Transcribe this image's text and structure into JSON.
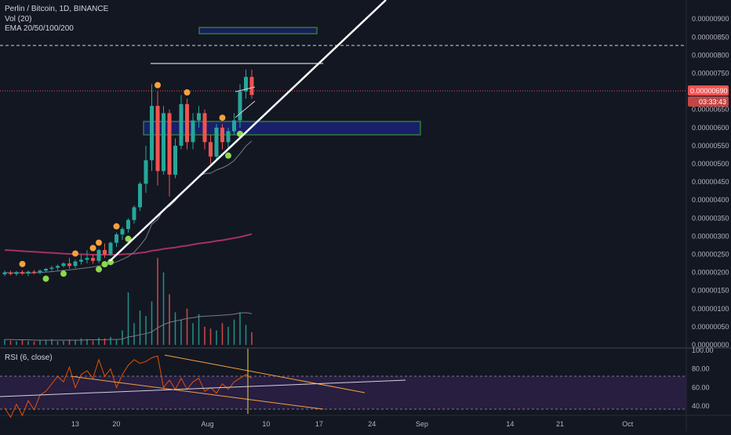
{
  "legend": {
    "symbol": "Perlin / Bitcoin, 1D, BINANCE",
    "volume": "Vol (20)",
    "ema": "EMA 20/50/100/200",
    "rsi": "RSI (6, close)"
  },
  "price_axis": {
    "labels": [
      "0.00000900",
      "0.00000850",
      "0.00000800",
      "0.00000750",
      "0.00000700",
      "0.00000650",
      "0.00000600",
      "0.00000550",
      "0.00000500",
      "0.00000450",
      "0.00000400",
      "0.00000350",
      "0.00000300",
      "0.00000250",
      "0.00000200",
      "0.00000150",
      "0.00000100",
      "0.00000050",
      "0.00000000"
    ],
    "last_price": "0.00000690",
    "countdown": "03:33:43"
  },
  "rsi_axis": {
    "labels": [
      "100.00",
      "80.00",
      "60.00",
      "40.00"
    ]
  },
  "time_axis": {
    "labels": [
      "13",
      "20",
      "Aug",
      "10",
      "17",
      "24",
      "Sep",
      "14",
      "21",
      "Oct"
    ]
  },
  "colors": {
    "background": "#131722",
    "up": "#26a69a",
    "down": "#ef5350",
    "ema_slow": "#a3325f",
    "ema_fast": "#787b86",
    "trendline": "#ffffff",
    "zone_fill": "#1a237e",
    "zone_border": "#2e7d32",
    "rsi_line": "#e65100",
    "rsi_band": "#2a1f44",
    "marker_orange": "#f5a13c",
    "marker_green": "#8bd94d",
    "last_price_bg": "#ef5350",
    "countdown_bg": "#d84f4f"
  },
  "chart_data": {
    "type": "candlestick",
    "instrument": "Perlin / Bitcoin",
    "interval": "1D",
    "exchange": "BINANCE",
    "y_range": [
      0.0,
      9.2e-06
    ],
    "ohlc": [
      {
        "o": 1.95e-06,
        "h": 2.05e-06,
        "l": 1.9e-06,
        "c": 2e-06
      },
      {
        "o": 2e-06,
        "h": 2.05e-06,
        "l": 1.92e-06,
        "c": 1.96e-06
      },
      {
        "o": 1.96e-06,
        "h": 2.04e-06,
        "l": 1.91e-06,
        "c": 2.01e-06
      },
      {
        "o": 2.01e-06,
        "h": 2.06e-06,
        "l": 1.93e-06,
        "c": 1.97e-06
      },
      {
        "o": 1.97e-06,
        "h": 2.05e-06,
        "l": 1.9e-06,
        "c": 2.02e-06
      },
      {
        "o": 2.02e-06,
        "h": 2.07e-06,
        "l": 1.95e-06,
        "c": 1.99e-06
      },
      {
        "o": 1.99e-06,
        "h": 2.08e-06,
        "l": 1.95e-06,
        "c": 2.05e-06
      },
      {
        "o": 2.05e-06,
        "h": 2.12e-06,
        "l": 2e-06,
        "c": 2.1e-06
      },
      {
        "o": 2.1e-06,
        "h": 2.18e-06,
        "l": 2.04e-06,
        "c": 2.13e-06
      },
      {
        "o": 2.13e-06,
        "h": 2.22e-06,
        "l": 2.06e-06,
        "c": 2.18e-06
      },
      {
        "o": 2.18e-06,
        "h": 2.28e-06,
        "l": 2.14e-06,
        "c": 2.25e-06
      },
      {
        "o": 2.25e-06,
        "h": 2.4e-06,
        "l": 2.1e-06,
        "c": 2.18e-06
      },
      {
        "o": 2.18e-06,
        "h": 2.35e-06,
        "l": 2.12e-06,
        "c": 2.3e-06
      },
      {
        "o": 2.3e-06,
        "h": 2.5e-06,
        "l": 2.22e-06,
        "c": 2.35e-06
      },
      {
        "o": 2.35e-06,
        "h": 2.62e-06,
        "l": 2.25e-06,
        "c": 2.4e-06
      },
      {
        "o": 2.4e-06,
        "h": 2.5e-06,
        "l": 2.24e-06,
        "c": 2.32e-06
      },
      {
        "o": 2.32e-06,
        "h": 2.65e-06,
        "l": 2.26e-06,
        "c": 2.62e-06
      },
      {
        "o": 2.62e-06,
        "h": 2.8e-06,
        "l": 2.4e-06,
        "c": 2.5e-06
      },
      {
        "o": 2.5e-06,
        "h": 2.85e-06,
        "l": 2.46e-06,
        "c": 2.82e-06
      },
      {
        "o": 2.82e-06,
        "h": 3.1e-06,
        "l": 2.7e-06,
        "c": 3.05e-06
      },
      {
        "o": 3.05e-06,
        "h": 3.25e-06,
        "l": 2.9e-06,
        "c": 3.2e-06
      },
      {
        "o": 3.2e-06,
        "h": 3.5e-06,
        "l": 3.1e-06,
        "c": 3.45e-06
      },
      {
        "o": 3.45e-06,
        "h": 3.85e-06,
        "l": 3.35e-06,
        "c": 3.8e-06
      },
      {
        "o": 3.8e-06,
        "h": 4.5e-06,
        "l": 3.7e-06,
        "c": 4.45e-06
      },
      {
        "o": 4.45e-06,
        "h": 5.5e-06,
        "l": 4.2e-06,
        "c": 5.1e-06
      },
      {
        "o": 5.1e-06,
        "h": 7.2e-06,
        "l": 4.8e-06,
        "c": 6.6e-06
      },
      {
        "o": 6.6e-06,
        "h": 7e-06,
        "l": 4.4e-06,
        "c": 4.8e-06
      },
      {
        "o": 4.8e-06,
        "h": 6.6e-06,
        "l": 4.7e-06,
        "c": 6.4e-06
      },
      {
        "o": 6.4e-06,
        "h": 6.5e-06,
        "l": 4.1e-06,
        "c": 4.7e-06
      },
      {
        "o": 4.7e-06,
        "h": 5.7e-06,
        "l": 4.6e-06,
        "c": 5.5e-06
      },
      {
        "o": 5.5e-06,
        "h": 6.9e-06,
        "l": 5.4e-06,
        "c": 6.65e-06
      },
      {
        "o": 6.65e-06,
        "h": 6.8e-06,
        "l": 5.4e-06,
        "c": 5.6e-06
      },
      {
        "o": 5.6e-06,
        "h": 6.4e-06,
        "l": 5.4e-06,
        "c": 6.2e-06
      },
      {
        "o": 6.2e-06,
        "h": 6.6e-06,
        "l": 6e-06,
        "c": 6.4e-06
      },
      {
        "o": 6.4e-06,
        "h": 6.5e-06,
        "l": 5.4e-06,
        "c": 5.6e-06
      },
      {
        "o": 5.6e-06,
        "h": 5.8e-06,
        "l": 5e-06,
        "c": 5.2e-06
      },
      {
        "o": 5.2e-06,
        "h": 6.1e-06,
        "l": 5.1e-06,
        "c": 6e-06
      },
      {
        "o": 6e-06,
        "h": 6.1e-06,
        "l": 5.4e-06,
        "c": 5.6e-06
      },
      {
        "o": 5.6e-06,
        "h": 6e-06,
        "l": 5.4e-06,
        "c": 5.9e-06
      },
      {
        "o": 5.9e-06,
        "h": 6.4e-06,
        "l": 5.8e-06,
        "c": 6.2e-06
      },
      {
        "o": 6.2e-06,
        "h": 7.2e-06,
        "l": 6e-06,
        "c": 7e-06
      },
      {
        "o": 7e-06,
        "h": 7.6e-06,
        "l": 6.8e-06,
        "c": 7.4e-06
      },
      {
        "o": 7.4e-06,
        "h": 7.6e-06,
        "l": 6.8e-06,
        "c": 6.9e-06
      }
    ],
    "volume": [
      1.5e-07,
      1.2e-07,
      1e-07,
      1.4e-07,
      1.1e-07,
      9e-08,
      1.3e-07,
      1.2e-07,
      1.6e-07,
      1e-07,
      1.1e-07,
      1.5e-07,
      1.3e-07,
      1.8e-07,
      1.6e-07,
      1.2e-07,
      2e-07,
      1.8e-07,
      2.2e-07,
      1.5e-07,
      4e-07,
      1.45e-06,
      6e-07,
      9.5e-07,
      8e-07,
      1.2e-06,
      2.4e-06,
      2e-06,
      1.4e-06,
      9e-07,
      7e-07,
      1e-06,
      6e-07,
      8.5e-07,
      5e-07,
      4.5e-07,
      4e-07,
      6e-07,
      5e-07,
      7e-07,
      9e-07,
      5.5e-07,
      3.5e-07
    ],
    "ema_fast": [
      2e-06,
      1.99e-06,
      1.99e-06,
      1.99e-06,
      1.99e-06,
      1.99e-06,
      2e-06,
      2.01e-06,
      2.02e-06,
      2.04e-06,
      2.06e-06,
      2.07e-06,
      2.09e-06,
      2.11e-06,
      2.13e-06,
      2.15e-06,
      2.18e-06,
      2.2e-06,
      2.24e-06,
      2.29e-06,
      2.36e-06,
      2.44e-06,
      2.56e-06,
      2.74e-06,
      2.95e-06,
      3.33e-06,
      3.46e-06,
      3.75e-06,
      3.83e-06,
      3.98e-06,
      4.2e-06,
      4.34e-06,
      4.5e-06,
      4.66e-06,
      4.73e-06,
      4.74e-06,
      4.83e-06,
      4.89e-06,
      4.97e-06,
      5.09e-06,
      5.28e-06,
      5.49e-06,
      5.63e-06
    ],
    "ema_slow": [
      2.62e-06,
      2.61e-06,
      2.6e-06,
      2.59e-06,
      2.58e-06,
      2.57e-06,
      2.56e-06,
      2.55e-06,
      2.54e-06,
      2.53e-06,
      2.52e-06,
      2.51e-06,
      2.51e-06,
      2.5e-06,
      2.5e-06,
      2.49e-06,
      2.49e-06,
      2.49e-06,
      2.49e-06,
      2.49e-06,
      2.5e-06,
      2.51e-06,
      2.52e-06,
      2.54e-06,
      2.56e-06,
      2.6e-06,
      2.62e-06,
      2.65e-06,
      2.67e-06,
      2.69e-06,
      2.72e-06,
      2.74e-06,
      2.77e-06,
      2.8e-06,
      2.82e-06,
      2.84e-06,
      2.87e-06,
      2.89e-06,
      2.92e-06,
      2.95e-06,
      2.98e-06,
      3.02e-06,
      3.06e-06
    ],
    "volume_ma": [
      1.5e-07,
      1.5e-07,
      1.4e-07,
      1.4e-07,
      1.4e-07,
      1.3e-07,
      1.3e-07,
      1.3e-07,
      1.3e-07,
      1.3e-07,
      1.3e-07,
      1.3e-07,
      1.3e-07,
      1.3e-07,
      1.4e-07,
      1.4e-07,
      1.4e-07,
      1.4e-07,
      1.5e-07,
      1.5e-07,
      1.6e-07,
      2.2e-07,
      2.4e-07,
      2.8e-07,
      3.1e-07,
      3.6e-07,
      4.7e-07,
      5.6e-07,
      6.2e-07,
      6.6e-07,
      6.9e-07,
      7.3e-07,
      7.5e-07,
      7.8e-07,
      7.9e-07,
      8e-07,
      8.1e-07,
      8.2e-07,
      8.3e-07,
      8.5e-07,
      8.8e-07,
      8.9e-07,
      8.6e-07
    ],
    "rsi": [
      38,
      28,
      42,
      30,
      46,
      36,
      52,
      56,
      64,
      72,
      66,
      82,
      60,
      74,
      78,
      70,
      90,
      72,
      80,
      60,
      74,
      84,
      90,
      86,
      88,
      92,
      94,
      60,
      68,
      58,
      70,
      58,
      66,
      70,
      56,
      60,
      54,
      64,
      58,
      66,
      70,
      74,
      70
    ],
    "rsi_range": [
      30,
      100
    ],
    "orange_markers": [
      3,
      12,
      15,
      16,
      19,
      26,
      31,
      37
    ],
    "green_markers": [
      7,
      10,
      16,
      17,
      18,
      21,
      38,
      40
    ]
  }
}
